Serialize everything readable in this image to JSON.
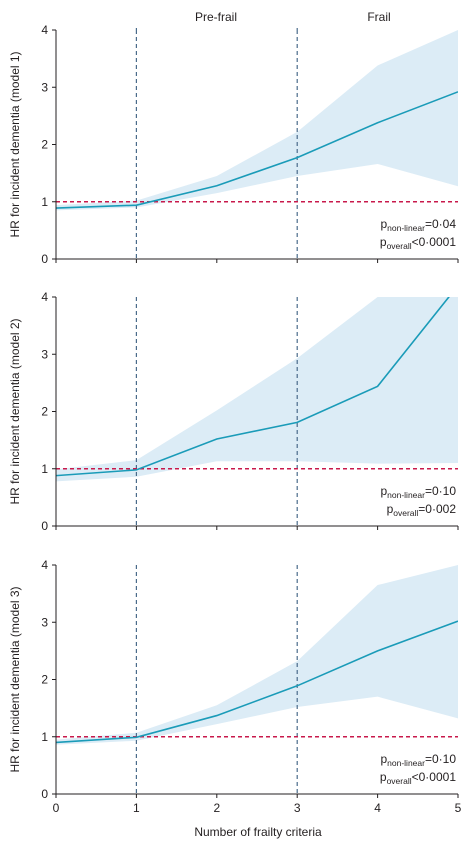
{
  "colors": {
    "line": "#1a9bb8",
    "ci_band": "#dcecf6",
    "reference_line": "#c8194b",
    "vertical_dashed": "#4a6b8a",
    "axis": "#231f20"
  },
  "header": {
    "prefrail_label": "Pre-frail",
    "frail_label": "Frail"
  },
  "x_axis": {
    "title": "Number of frailty criteria",
    "ticks": [
      "0",
      "1",
      "2",
      "3",
      "4",
      "5"
    ]
  },
  "chart_data": [
    {
      "type": "line",
      "ylabel": "HR for incident dementia (model 1)",
      "x": [
        0,
        1,
        2,
        3,
        4,
        5
      ],
      "xlim": [
        0,
        5
      ],
      "ylim": [
        0,
        4
      ],
      "yticks": [
        "0",
        "1",
        "2",
        "3",
        "4"
      ],
      "series": [
        {
          "values": [
            0.89,
            0.94,
            1.28,
            1.77,
            2.38,
            2.92
          ],
          "ci_lower": [
            0.85,
            0.9,
            1.15,
            1.45,
            1.66,
            1.27
          ],
          "ci_upper": [
            0.94,
            1.02,
            1.45,
            2.22,
            3.38,
            4.0
          ]
        }
      ],
      "reference_y": 1,
      "vertical_markers": [
        1,
        3
      ],
      "p_nonlinear": {
        "prefix": "p",
        "subscript": "non-linear",
        "text": "=0·04"
      },
      "p_overall": {
        "prefix": "p",
        "subscript": "overall",
        "text": "<0·0001"
      }
    },
    {
      "type": "line",
      "ylabel": "HR for incident dementia (model 2)",
      "x": [
        0,
        1,
        2,
        3,
        4,
        5
      ],
      "xlim": [
        0,
        5
      ],
      "ylim": [
        0,
        4
      ],
      "yticks": [
        "0",
        "1",
        "2",
        "3",
        "4"
      ],
      "series": [
        {
          "values": [
            0.88,
            0.98,
            1.52,
            1.81,
            2.44,
            4.2
          ],
          "ci_lower": [
            0.78,
            0.86,
            1.13,
            1.13,
            1.09,
            1.1
          ],
          "ci_upper": [
            0.99,
            1.15,
            2.02,
            2.93,
            4.0,
            4.0
          ]
        }
      ],
      "reference_y": 1,
      "vertical_markers": [
        1,
        3
      ],
      "p_nonlinear": {
        "prefix": "p",
        "subscript": "non-linear",
        "text": "=0·10"
      },
      "p_overall": {
        "prefix": "p",
        "subscript": "overall",
        "text": "=0·002"
      }
    },
    {
      "type": "line",
      "ylabel": "HR for incident dementia (model 3)",
      "x": [
        0,
        1,
        2,
        3,
        4,
        5
      ],
      "xlim": [
        0,
        5
      ],
      "ylim": [
        0,
        4
      ],
      "yticks": [
        "0",
        "1",
        "2",
        "3",
        "4"
      ],
      "series": [
        {
          "values": [
            0.9,
            0.99,
            1.37,
            1.89,
            2.5,
            3.02
          ],
          "ci_lower": [
            0.86,
            0.93,
            1.22,
            1.52,
            1.7,
            1.32
          ],
          "ci_upper": [
            0.95,
            1.07,
            1.55,
            2.32,
            3.65,
            4.0
          ]
        }
      ],
      "reference_y": 1,
      "vertical_markers": [
        1,
        3
      ],
      "p_nonlinear": {
        "prefix": "p",
        "subscript": "non-linear",
        "text": "=0·10"
      },
      "p_overall": {
        "prefix": "p",
        "subscript": "overall",
        "text": "<0·0001"
      }
    }
  ]
}
